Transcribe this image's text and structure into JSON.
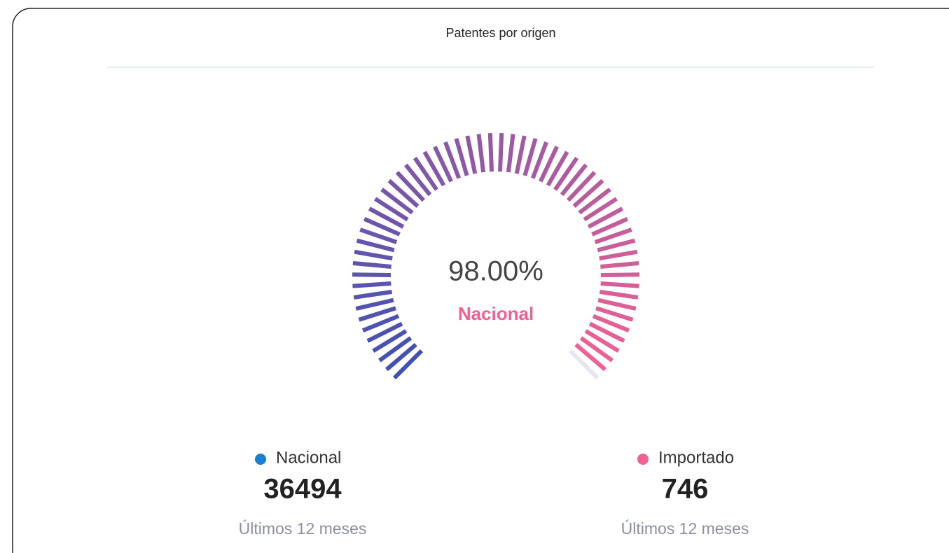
{
  "chart_data": {
    "type": "gauge",
    "title": "Patentes por origen",
    "values": [
      98
    ],
    "value_labels": [
      "98.00%"
    ],
    "label": "Nacional",
    "ylim": [
      0,
      100
    ],
    "colors": [
      "#3f51b5",
      "#f06292"
    ]
  },
  "summary": [
    {
      "name": "Nacional",
      "color": "#1b7fd1",
      "value": 36494,
      "period": "Últimos 12 meses"
    },
    {
      "name": "Importado",
      "color": "#f06292",
      "value": 746,
      "period": "Últimos 12 meses"
    }
  ]
}
